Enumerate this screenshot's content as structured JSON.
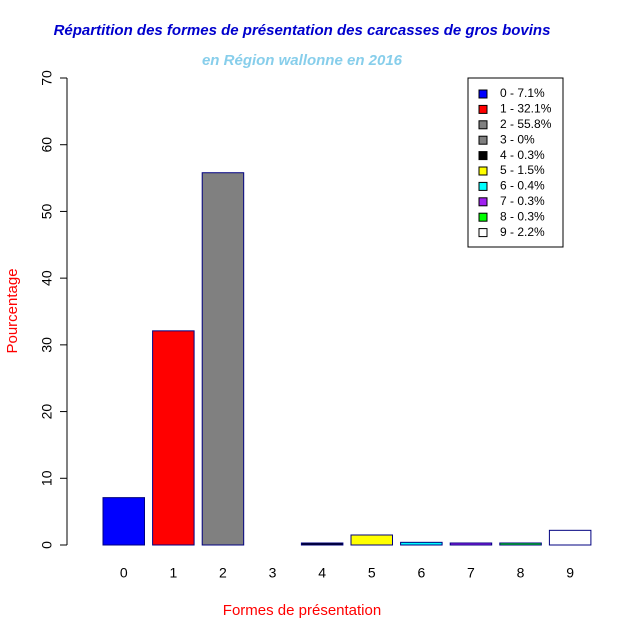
{
  "chart_data": {
    "type": "bar",
    "title": "Répartition des formes de présentation des carcasses de gros bovins",
    "subtitle": "en Région wallonne en 2016",
    "x_label": "Formes de présentation",
    "y_label": "Pourcentage",
    "categories": [
      "0",
      "1",
      "2",
      "3",
      "4",
      "5",
      "6",
      "7",
      "8",
      "9"
    ],
    "values": [
      7.1,
      32.1,
      55.8,
      0,
      0.3,
      1.5,
      0.4,
      0.3,
      0.3,
      2.2
    ],
    "colors": [
      "#0000ff",
      "#ff0000",
      "#808080",
      "#808080",
      "#000000",
      "#ffff00",
      "#00ffff",
      "#a020f0",
      "#00ff00",
      "#ffffff"
    ],
    "border_color": "#000080",
    "legend_labels": [
      "0 - 7.1%",
      "1 - 32.1%",
      "2 - 55.8%",
      "3 - 0%",
      "4 - 0.3%",
      "5 - 1.5%",
      "6 - 0.4%",
      "7 - 0.3%",
      "8 - 0.3%",
      "9 - 2.2%"
    ],
    "legend_position": "top-right",
    "ylim": [
      0,
      70
    ],
    "yticks": [
      0,
      10,
      20,
      30,
      40,
      50,
      60,
      70
    ],
    "grid": false
  }
}
